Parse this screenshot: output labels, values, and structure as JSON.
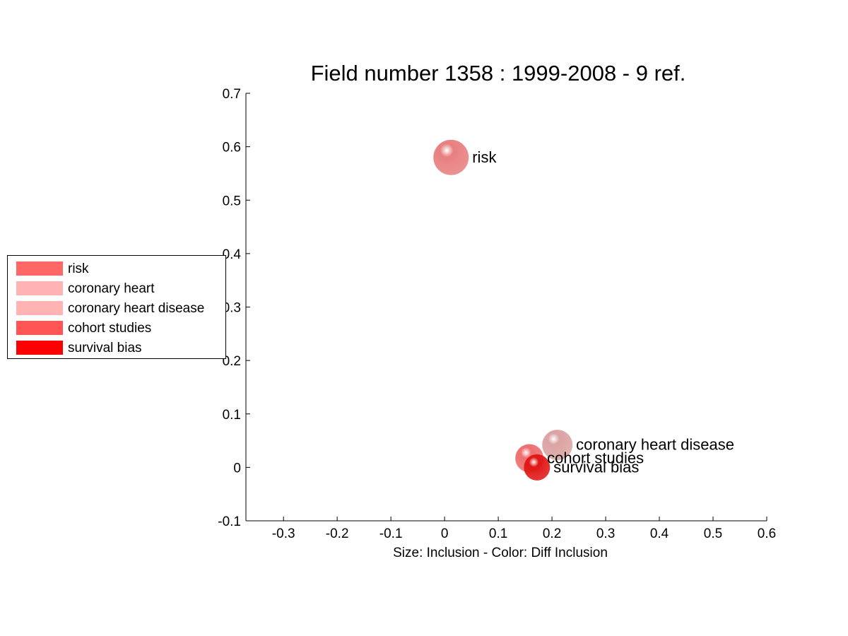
{
  "chart_data": {
    "type": "scatter",
    "title": "Field number 1358 : 1999-2008  - 9 ref.",
    "xlabel": "Size: Inclusion - Color: Diff Inclusion",
    "ylabel": "",
    "xlim": [
      -0.37,
      0.6
    ],
    "ylim": [
      -0.1,
      0.7
    ],
    "xticks": [
      -0.3,
      -0.2,
      -0.1,
      0,
      0.1,
      0.2,
      0.3,
      0.4,
      0.5,
      0.6
    ],
    "xtick_labels": [
      "-0.3",
      "-0.2",
      "-0.1",
      "0",
      "0.1",
      "0.2",
      "0.3",
      "0.4",
      "0.5",
      "0.6"
    ],
    "yticks": [
      -0.1,
      0,
      0.1,
      0.2,
      0.3,
      0.4,
      0.5,
      0.6,
      0.7
    ],
    "ytick_labels": [
      "-0.1",
      "0",
      "0.1",
      "0.2",
      "0.3",
      "0.4",
      "0.5",
      "0.6",
      "0.7"
    ],
    "grid": false,
    "legend_position": "left",
    "points": [
      {
        "label": "risk",
        "x": 0.012,
        "y": 0.58,
        "size": 1.0,
        "color": "#e87f7f"
      },
      {
        "label": "coronary heart disease",
        "x": 0.21,
        "y": 0.042,
        "size": 0.86,
        "color": "#dba3a3"
      },
      {
        "label": "cohort studies",
        "x": 0.158,
        "y": 0.017,
        "size": 0.8,
        "color": "#ee6f6f"
      },
      {
        "label": "survival bias",
        "x": 0.172,
        "y": 0.0,
        "size": 0.74,
        "color": "#e01818"
      }
    ],
    "legend": [
      {
        "label": "risk",
        "color": "#ff6666"
      },
      {
        "label": "coronary heart",
        "color": "#ffb3b3"
      },
      {
        "label": "coronary heart disease",
        "color": "#ffb3b3"
      },
      {
        "label": "cohort studies",
        "color": "#ff5555"
      },
      {
        "label": "survival bias",
        "color": "#ff0000"
      }
    ]
  }
}
